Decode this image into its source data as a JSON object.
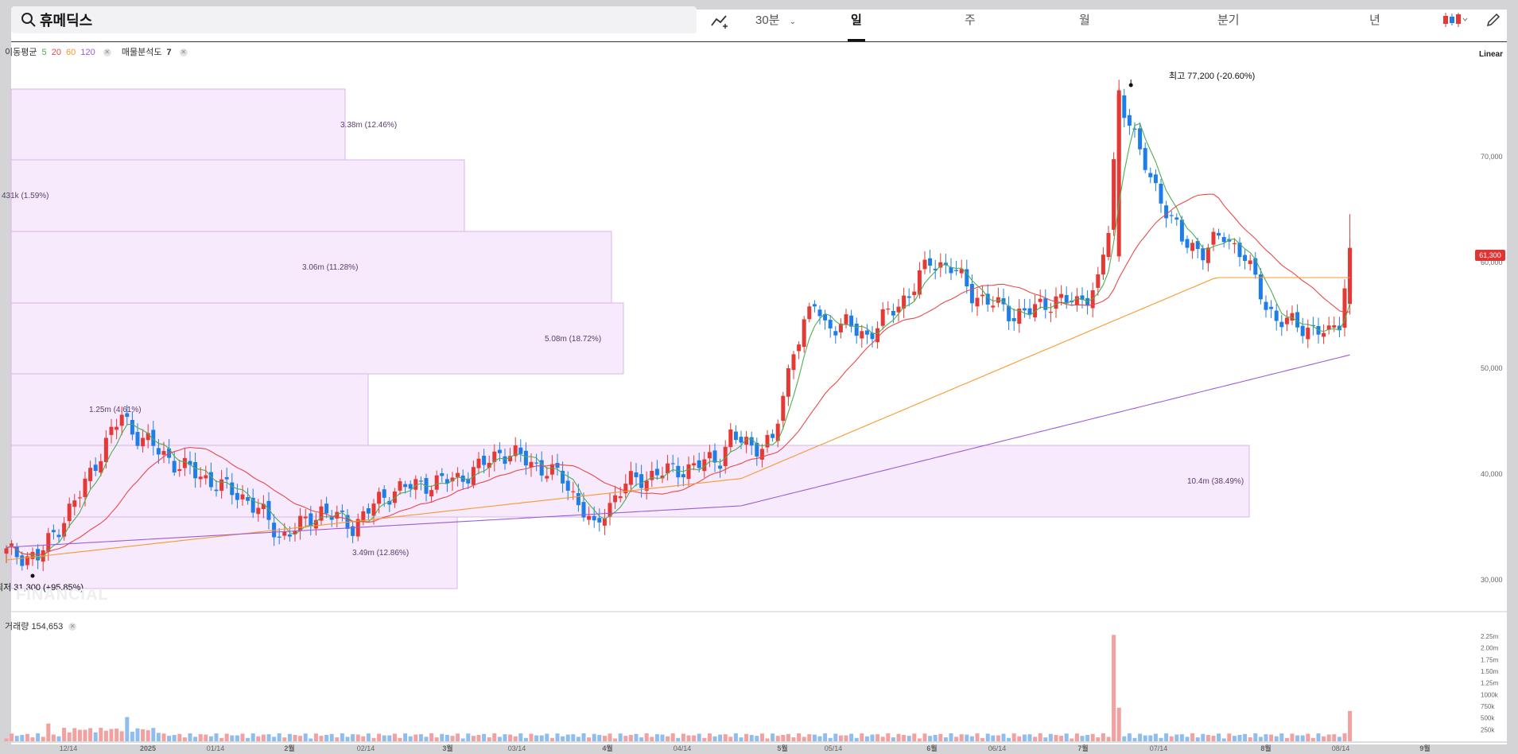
{
  "search": {
    "query": "휴메딕스"
  },
  "nav": {
    "interval": "30분",
    "periods": [
      "일",
      "주",
      "월",
      "분기",
      "년"
    ],
    "active": "일"
  },
  "legend": {
    "ma_label": "이동평균",
    "ma_periods": [
      "5",
      "20",
      "60",
      "120"
    ],
    "ma_colors": [
      "#4caf50",
      "#e84a4a",
      "#f59a2f",
      "#9b5cd6"
    ],
    "volume_profile_label": "매물분석도",
    "volume_profile_value": "7"
  },
  "scale_mode": "Linear",
  "watermark": "FINANCIAL",
  "colors": {
    "up": "#e53935",
    "down": "#1e7de6",
    "profile_fill": "#f6eafc",
    "profile_border": "#d9b5ea"
  },
  "chart_data": {
    "type": "candlestick",
    "x_labels": [
      "12/14",
      "2025",
      "01/14",
      "2월",
      "02/14",
      "3월",
      "03/14",
      "4월",
      "04/14",
      "5월",
      "05/14",
      "6월",
      "06/14",
      "7월",
      "07/14",
      "8월",
      "08/14",
      "9월"
    ],
    "y_ticks": [
      "70,000",
      "60,000",
      "50,000",
      "40,000",
      "30,000"
    ],
    "ylim": [
      28000,
      80000
    ],
    "high_annotation": {
      "label": "최고",
      "value": "77,200",
      "change": "(-20.60%)"
    },
    "low_annotation": {
      "label": "최저",
      "value": "31,300",
      "change": "(+95.85%)"
    },
    "last_price": "61,300",
    "close_path": [
      [
        0,
        32500
      ],
      [
        6,
        32000
      ],
      [
        10,
        35000
      ],
      [
        14,
        38000
      ],
      [
        18,
        42000
      ],
      [
        22,
        45500
      ],
      [
        24,
        44000
      ],
      [
        28,
        42500
      ],
      [
        32,
        41000
      ],
      [
        36,
        40000
      ],
      [
        40,
        39000
      ],
      [
        46,
        37500
      ],
      [
        50,
        35500
      ],
      [
        52,
        34000
      ],
      [
        56,
        35000
      ],
      [
        60,
        36500
      ],
      [
        64,
        35500
      ],
      [
        66,
        35000
      ],
      [
        70,
        37000
      ],
      [
        74,
        38500
      ],
      [
        80,
        39000
      ],
      [
        86,
        39500
      ],
      [
        90,
        40500
      ],
      [
        94,
        42000
      ],
      [
        98,
        41500
      ],
      [
        102,
        40500
      ],
      [
        106,
        39500
      ],
      [
        108,
        38000
      ],
      [
        110,
        36500
      ],
      [
        112,
        34500
      ],
      [
        114,
        36500
      ],
      [
        118,
        39000
      ],
      [
        124,
        40000
      ],
      [
        130,
        40500
      ],
      [
        136,
        41500
      ],
      [
        138,
        43500
      ],
      [
        142,
        42500
      ],
      [
        146,
        43000
      ],
      [
        148,
        47000
      ],
      [
        150,
        52000
      ],
      [
        152,
        54000
      ],
      [
        154,
        56000
      ],
      [
        156,
        54000
      ],
      [
        160,
        54000
      ],
      [
        164,
        53000
      ],
      [
        168,
        55000
      ],
      [
        172,
        57000
      ],
      [
        176,
        60000
      ],
      [
        180,
        59500
      ],
      [
        184,
        57000
      ],
      [
        188,
        56000
      ],
      [
        192,
        55000
      ],
      [
        196,
        55500
      ],
      [
        200,
        56500
      ],
      [
        204,
        56000
      ],
      [
        208,
        58000
      ],
      [
        210,
        63000
      ],
      [
        212,
        75500
      ],
      [
        214,
        73500
      ],
      [
        216,
        70000
      ],
      [
        220,
        66000
      ],
      [
        224,
        62000
      ],
      [
        228,
        61000
      ],
      [
        232,
        62500
      ],
      [
        236,
        60500
      ],
      [
        238,
        58000
      ],
      [
        240,
        56000
      ],
      [
        242,
        54500
      ],
      [
        246,
        54000
      ],
      [
        250,
        53500
      ],
      [
        252,
        53000
      ],
      [
        254,
        54500
      ],
      [
        256,
        61300
      ]
    ],
    "volume_ticks": [
      "2.25m",
      "2.00m",
      "1.75m",
      "1.50m",
      "1.25m",
      "1000k",
      "750k",
      "500k",
      "250k"
    ],
    "volume_label": "거래량",
    "volume_value": "154,653",
    "volume_spikes": [
      {
        "i": 8,
        "v": 380000
      },
      {
        "i": 23,
        "v": 520000
      },
      {
        "i": 211,
        "v": 2280000
      },
      {
        "i": 212,
        "v": 720000
      },
      {
        "i": 256,
        "v": 650000
      }
    ],
    "volume_profile": [
      {
        "label": "3.38m (12.46%)"
      },
      {
        "label": "431k (1.59%)"
      },
      {
        "label": "3.06m (11.28%)"
      },
      {
        "label": "5.08m (18.72%)"
      },
      {
        "label": "1.25m (4.61%)"
      },
      {
        "label": "10.4m (38.49%)"
      },
      {
        "label": "3.49m (12.86%)"
      }
    ]
  }
}
